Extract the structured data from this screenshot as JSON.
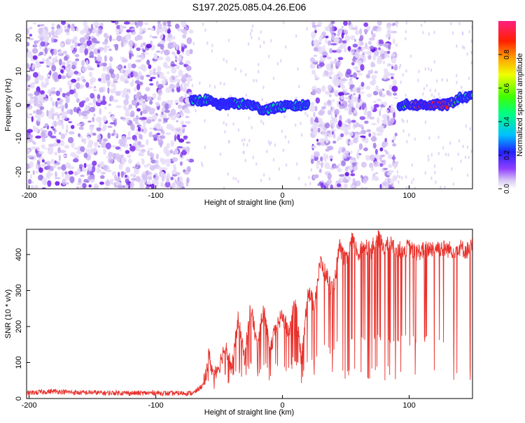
{
  "title": "S197.2025.085.04.26.E06",
  "chart_data": [
    {
      "type": "heatmap",
      "xlabel": "Height of straight line (km)",
      "ylabel": "Frequency (Hz)",
      "xlim": [
        -202,
        150
      ],
      "ylim": [
        -25,
        25
      ],
      "xticks": [
        -200,
        -100,
        0,
        100
      ],
      "yticks": [
        -20,
        -10,
        0,
        10,
        20
      ],
      "colorbar": {
        "label": "Normalized spectral amplitude",
        "range": [
          0,
          1
        ],
        "ticks": [
          0.0,
          0.2,
          0.4,
          0.6,
          0.8
        ],
        "tick_labels": [
          "0.0",
          "0.2",
          "0.4",
          "0.6",
          "0.8"
        ]
      },
      "noise_regions_km": [
        [
          -202,
          -72
        ],
        [
          23,
          90
        ]
      ],
      "signal_ridge": [
        {
          "x": -72,
          "y": 1,
          "amp": 0.35
        },
        {
          "x": -60,
          "y": 1.5,
          "amp": 0.4
        },
        {
          "x": -50,
          "y": 0,
          "amp": 0.3
        },
        {
          "x": -38,
          "y": 0.5,
          "amp": 0.35
        },
        {
          "x": -25,
          "y": 0,
          "amp": 0.45
        },
        {
          "x": -15,
          "y": -1.5,
          "amp": 0.4
        },
        {
          "x": 0,
          "y": -0.5,
          "amp": 0.4
        },
        {
          "x": 20,
          "y": 0,
          "amp": 0.35
        },
        {
          "x": 92,
          "y": 0,
          "amp": 0.35
        },
        {
          "x": 105,
          "y": 0,
          "amp": 0.85
        },
        {
          "x": 115,
          "y": 0,
          "amp": 0.9
        },
        {
          "x": 130,
          "y": 0,
          "amp": 0.95
        },
        {
          "x": 140,
          "y": 2,
          "amp": 0.4
        },
        {
          "x": 150,
          "y": 2.5,
          "amp": 0.4
        }
      ]
    },
    {
      "type": "line",
      "xlabel": "Height of straight line (km)",
      "ylabel": "SNR (10 * v/v)",
      "xlim": [
        -202,
        150
      ],
      "ylim": [
        0,
        470
      ],
      "xticks": [
        -200,
        -100,
        0,
        100
      ],
      "yticks": [
        0,
        100,
        200,
        300,
        400
      ],
      "color": "#e8302a",
      "series": [
        {
          "x": [
            -202,
            -190,
            -180,
            -170,
            -160,
            -150,
            -140,
            -130,
            -120,
            -110,
            -100,
            -90,
            -80,
            -70,
            -62,
            -58,
            -55,
            -50,
            -45,
            -40,
            -35,
            -30,
            -25,
            -20,
            -15,
            -10,
            -5,
            0,
            5,
            10,
            15,
            20,
            25,
            30,
            35,
            40,
            45,
            50,
            55,
            60,
            65,
            70,
            75,
            80,
            85,
            90,
            95,
            100,
            105,
            110,
            115,
            120,
            125,
            130,
            135,
            140,
            145,
            150
          ],
          "y": [
            15,
            18,
            20,
            18,
            16,
            17,
            15,
            16,
            15,
            15,
            16,
            14,
            15,
            15,
            40,
            120,
            70,
            90,
            150,
            80,
            220,
            110,
            260,
            140,
            250,
            130,
            200,
            230,
            180,
            280,
            100,
            300,
            260,
            380,
            340,
            300,
            420,
            380,
            440,
            400,
            430,
            410,
            450,
            420,
            430,
            410,
            415,
            420,
            405,
            410,
            415,
            420,
            418,
            415,
            412,
            420,
            410,
            425
          ]
        }
      ]
    }
  ]
}
